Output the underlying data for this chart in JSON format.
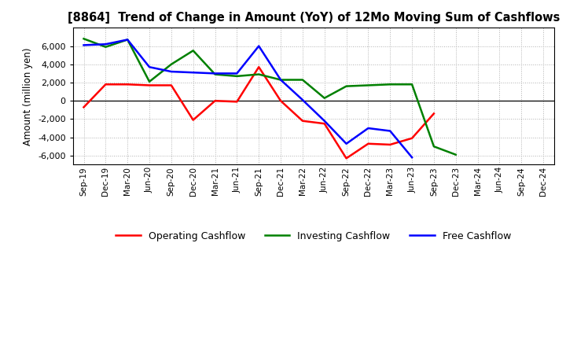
{
  "title": "[8864]  Trend of Change in Amount (YoY) of 12Mo Moving Sum of Cashflows",
  "ylabel": "Amount (million yen)",
  "x_labels": [
    "Sep-19",
    "Dec-19",
    "Mar-20",
    "Jun-20",
    "Sep-20",
    "Dec-20",
    "Mar-21",
    "Jun-21",
    "Sep-21",
    "Dec-21",
    "Mar-22",
    "Jun-22",
    "Sep-22",
    "Dec-22",
    "Mar-23",
    "Jun-23",
    "Sep-23",
    "Dec-23",
    "Mar-24",
    "Jun-24",
    "Sep-24",
    "Dec-24"
  ],
  "operating": [
    -700,
    1800,
    1800,
    1700,
    1700,
    -2100,
    0,
    -100,
    3700,
    0,
    -2200,
    -2500,
    -6300,
    -4700,
    -4800,
    -4100,
    -1400,
    null,
    null,
    null,
    null,
    null
  ],
  "investing": [
    6800,
    5900,
    6700,
    2100,
    4000,
    5500,
    2900,
    2700,
    2900,
    2300,
    2300,
    300,
    1600,
    1700,
    1800,
    1800,
    -5000,
    -5900,
    null,
    null,
    null,
    null
  ],
  "free": [
    6100,
    6200,
    6700,
    3700,
    3200,
    3100,
    3000,
    3000,
    6000,
    2300,
    100,
    -2200,
    -4700,
    -3000,
    -3300,
    -6200,
    null,
    null,
    null,
    null,
    null,
    null
  ],
  "ylim": [
    -7000,
    8000
  ],
  "yticks": [
    -6000,
    -4000,
    -2000,
    0,
    2000,
    4000,
    6000
  ],
  "operating_color": "#ff0000",
  "investing_color": "#008000",
  "free_color": "#0000ff",
  "bg_color": "#ffffff",
  "grid_color": "#b0b0b0"
}
